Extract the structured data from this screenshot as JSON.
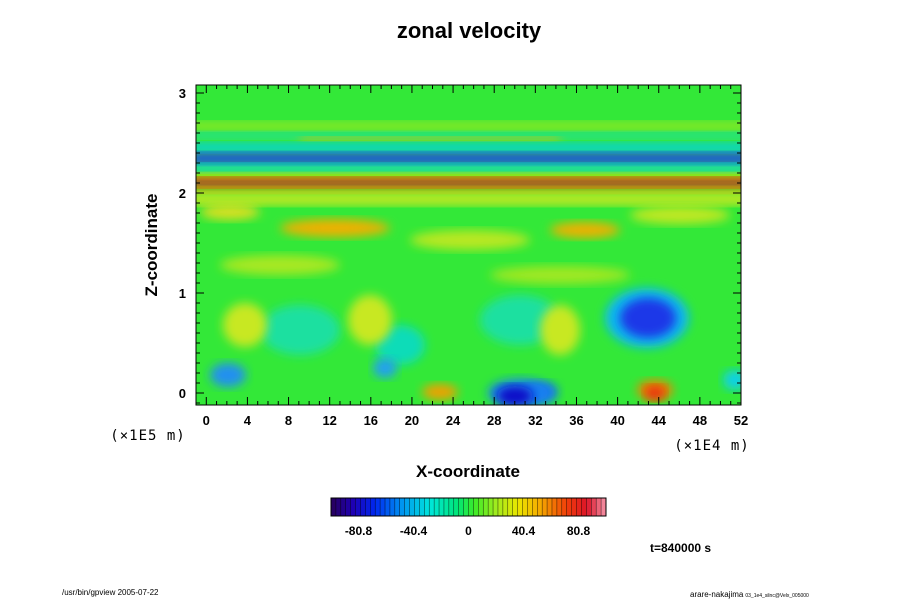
{
  "chart_data": {
    "type": "heatmap",
    "title": "zonal velocity",
    "xlabel": "X-coordinate",
    "ylabel": "Z-coordinate",
    "x_ticks": [
      "0",
      "4",
      "8",
      "12",
      "16",
      "20",
      "24",
      "28",
      "32",
      "36",
      "40",
      "44",
      "48",
      "52"
    ],
    "y_ticks": [
      "0",
      "1",
      "2",
      "3"
    ],
    "x_scale_label": "(×1E4 m)",
    "y_scale_label": "(×1E5 m)",
    "xlim": [
      -1,
      52
    ],
    "ylim": [
      -0.12,
      3.08
    ],
    "colorbar": {
      "ticks": [
        "-80.8",
        "-40.4",
        "0",
        "40.4",
        "80.8"
      ],
      "range": [
        -101,
        101
      ]
    },
    "time_label": "t=840000 s",
    "features": [
      {
        "x": 10,
        "z": 2.12,
        "value": 75
      },
      {
        "x": 30,
        "z": 2.35,
        "value": -70
      },
      {
        "x": 42,
        "z": 0.75,
        "value": -65
      },
      {
        "x": 30,
        "z": 0.0,
        "value": -90
      },
      {
        "x": 43,
        "z": 0.05,
        "value": 60
      },
      {
        "x": 15,
        "z": 1.65,
        "value": 40
      }
    ]
  },
  "footer": {
    "left": "/usr/bin/gpview 2005-07-22",
    "right_main": "arare-nakajima",
    "right_sub": "03_1e4_silnc@Velx_005000"
  }
}
